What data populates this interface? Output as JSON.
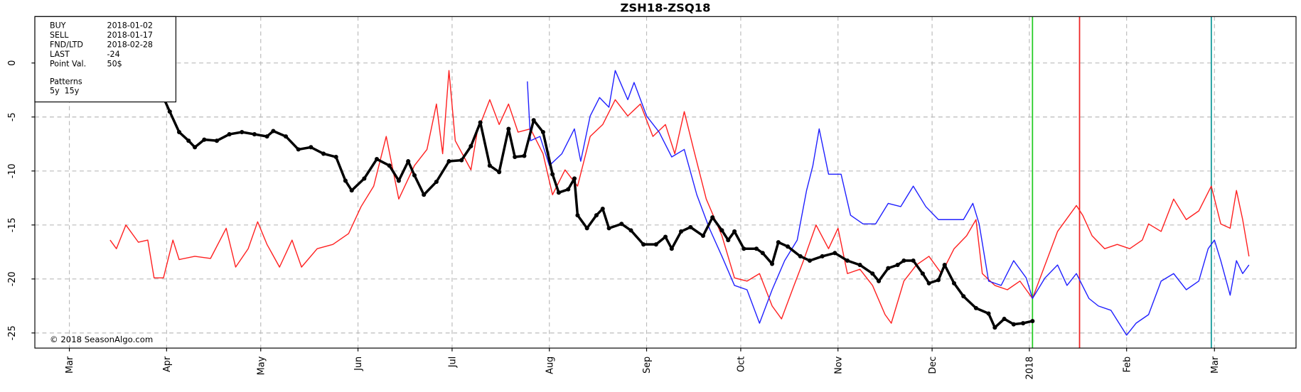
{
  "chart_data": {
    "type": "line",
    "title": "ZSH18-ZSQ18",
    "xlim": [
      -11,
      391
    ],
    "xticks": [
      {
        "value": 0,
        "label": "Mar"
      },
      {
        "value": 31,
        "label": "Apr"
      },
      {
        "value": 61,
        "label": "May"
      },
      {
        "value": 92,
        "label": "Jun"
      },
      {
        "value": 122,
        "label": "Jul"
      },
      {
        "value": 153,
        "label": "Aug"
      },
      {
        "value": 184,
        "label": "Sep"
      },
      {
        "value": 214,
        "label": "Oct"
      },
      {
        "value": 245,
        "label": "Nov"
      },
      {
        "value": 275,
        "label": "Dec"
      },
      {
        "value": 306,
        "label": "2018"
      },
      {
        "value": 337,
        "label": "Feb"
      },
      {
        "value": 365,
        "label": "Mar"
      }
    ],
    "ylim": [
      -26.4,
      4.3
    ],
    "yticks": [
      0,
      -5,
      -10,
      -15,
      -20,
      -25
    ],
    "grid": true,
    "markers": [
      {
        "label": "BUY",
        "date": "2018-01-02",
        "x": 307,
        "color": "#22cc22"
      },
      {
        "label": "SELL",
        "date": "2018-01-17",
        "x": 322,
        "color": "#ee2222"
      },
      {
        "label": "FND/LTD",
        "date": "2018-02-28",
        "x": 364,
        "color": "#119999"
      }
    ],
    "info": [
      {
        "label": "LAST",
        "value": -24
      },
      {
        "label": "Point Val.",
        "value": "50$"
      }
    ],
    "patterns_title": "Patterns",
    "copyright": "© 2018 SeasonAlgo.com",
    "series": [
      {
        "name": "5y",
        "color": "#ff2020",
        "width": 1.2,
        "dots": false,
        "x": [
          13,
          15,
          18,
          22,
          25,
          27,
          30,
          33,
          35,
          40,
          45,
          50,
          53,
          57,
          60,
          63,
          67,
          71,
          74,
          79,
          84,
          89,
          93,
          97,
          101,
          105,
          110,
          114,
          117,
          119,
          121,
          123,
          128,
          130,
          134,
          137,
          140,
          143,
          147,
          151,
          154,
          158,
          162,
          166,
          170,
          174,
          178,
          182,
          186,
          190,
          193,
          196,
          199,
          203,
          208,
          212,
          216,
          220,
          224,
          227,
          231,
          234,
          238,
          242,
          245,
          248,
          252,
          256,
          260,
          262,
          266,
          270,
          274,
          278,
          282,
          286,
          289,
          291,
          295,
          299,
          303,
          307,
          311,
          315,
          321,
          323,
          326,
          330,
          334,
          338,
          342,
          344,
          348,
          352,
          356,
          360,
          364,
          367,
          370,
          372,
          374,
          376
        ],
        "values": [
          -16.4,
          -17.2,
          -15.0,
          -16.6,
          -16.4,
          -19.9,
          -19.9,
          -16.4,
          -18.2,
          -17.9,
          -18.1,
          -15.3,
          -18.9,
          -17.2,
          -14.7,
          -16.8,
          -18.9,
          -16.4,
          -18.9,
          -17.2,
          -16.8,
          -15.8,
          -13.3,
          -11.4,
          -6.8,
          -12.6,
          -9.5,
          -8.0,
          -3.8,
          -8.4,
          -0.7,
          -7.2,
          -9.9,
          -6.4,
          -3.4,
          -5.7,
          -3.8,
          -6.4,
          -6.1,
          -8.4,
          -12.2,
          -9.9,
          -11.4,
          -6.8,
          -5.7,
          -3.4,
          -4.9,
          -3.8,
          -6.8,
          -5.7,
          -8.4,
          -4.5,
          -8.0,
          -12.6,
          -16.0,
          -19.9,
          -20.2,
          -19.5,
          -22.5,
          -23.7,
          -20.6,
          -18.3,
          -15.0,
          -17.2,
          -15.3,
          -19.5,
          -19.1,
          -20.6,
          -23.3,
          -24.1,
          -20.2,
          -18.7,
          -17.9,
          -19.5,
          -17.2,
          -16.0,
          -14.5,
          -19.5,
          -20.6,
          -21.0,
          -20.2,
          -21.8,
          -18.7,
          -15.6,
          -13.2,
          -14.1,
          -16.0,
          -17.2,
          -16.8,
          -17.2,
          -16.4,
          -14.9,
          -15.6,
          -12.6,
          -14.5,
          -13.7,
          -11.4,
          -14.9,
          -15.3,
          -11.8,
          -14.5,
          -17.9
        ]
      },
      {
        "name": "15y",
        "color": "#2020ff",
        "width": 1.2,
        "dots": false,
        "x": [
          146,
          147,
          150,
          153,
          157,
          161,
          163,
          166,
          169,
          172,
          174,
          178,
          180,
          184,
          188,
          192,
          196,
          200,
          204,
          208,
          212,
          216,
          220,
          224,
          228,
          232,
          235,
          237,
          239,
          242,
          246,
          249,
          253,
          257,
          261,
          265,
          269,
          273,
          277,
          281,
          285,
          288,
          290,
          293,
          297,
          301,
          305,
          307,
          311,
          315,
          318,
          321,
          325,
          328,
          332,
          337,
          340,
          344,
          348,
          352,
          356,
          360,
          363,
          365,
          367,
          370,
          372,
          374,
          376
        ],
        "values": [
          -1.7,
          -7.2,
          -6.8,
          -9.5,
          -8.4,
          -6.1,
          -9.1,
          -4.9,
          -3.2,
          -4.1,
          -0.7,
          -3.4,
          -1.8,
          -4.9,
          -6.4,
          -8.7,
          -8.0,
          -12.2,
          -15.3,
          -17.9,
          -20.6,
          -21.0,
          -24.1,
          -21.0,
          -18.3,
          -16.4,
          -11.8,
          -9.5,
          -6.1,
          -10.3,
          -10.3,
          -14.1,
          -14.9,
          -14.9,
          -13.0,
          -13.3,
          -11.4,
          -13.3,
          -14.5,
          -14.5,
          -14.5,
          -13.0,
          -14.9,
          -20.2,
          -20.6,
          -18.3,
          -19.9,
          -21.8,
          -19.9,
          -18.7,
          -20.6,
          -19.5,
          -21.8,
          -22.5,
          -22.9,
          -25.2,
          -24.1,
          -23.3,
          -20.2,
          -19.5,
          -21.0,
          -20.2,
          -17.2,
          -16.4,
          -18.3,
          -21.5,
          -18.3,
          -19.5,
          -18.7
        ]
      },
      {
        "color": "#000000",
        "width": 3,
        "dots": true,
        "x": [
          30,
          32,
          35,
          38,
          40,
          43,
          47,
          51,
          55,
          59,
          63,
          65,
          69,
          73,
          77,
          81,
          85,
          88,
          90,
          94,
          98,
          102,
          105,
          108,
          110,
          113,
          117,
          121,
          125,
          128,
          131,
          134,
          137,
          140,
          142,
          145,
          148,
          151,
          154,
          156,
          159,
          161,
          162,
          165,
          168,
          170,
          172,
          176,
          179,
          183,
          187,
          190,
          192,
          195,
          198,
          202,
          205,
          208,
          210,
          212,
          215,
          219,
          221,
          224,
          226,
          229,
          233,
          236,
          240,
          244,
          248,
          252,
          256,
          258,
          261,
          264,
          266,
          269,
          272,
          274,
          277,
          279,
          282,
          285,
          289,
          293,
          295,
          298,
          301,
          304,
          307
        ],
        "values": [
          -3.2,
          -4.5,
          -6.4,
          -7.2,
          -7.8,
          -7.1,
          -7.2,
          -6.6,
          -6.4,
          -6.6,
          -6.8,
          -6.3,
          -6.8,
          -8.0,
          -7.8,
          -8.4,
          -8.7,
          -10.9,
          -11.8,
          -10.7,
          -8.9,
          -9.5,
          -10.9,
          -9.1,
          -10.4,
          -12.2,
          -11.0,
          -9.1,
          -9.0,
          -7.7,
          -5.5,
          -9.5,
          -10.1,
          -6.1,
          -8.7,
          -8.6,
          -5.3,
          -6.4,
          -10.3,
          -12.0,
          -11.7,
          -10.7,
          -14.1,
          -15.3,
          -14.1,
          -13.5,
          -15.3,
          -14.9,
          -15.5,
          -16.8,
          -16.8,
          -16.1,
          -17.2,
          -15.6,
          -15.2,
          -16.0,
          -14.3,
          -15.5,
          -16.4,
          -15.6,
          -17.2,
          -17.2,
          -17.6,
          -18.6,
          -16.6,
          -17.0,
          -17.9,
          -18.3,
          -17.9,
          -17.6,
          -18.3,
          -18.7,
          -19.5,
          -20.2,
          -19.0,
          -18.7,
          -18.3,
          -18.3,
          -19.5,
          -20.4,
          -20.1,
          -18.7,
          -20.4,
          -21.6,
          -22.7,
          -23.2,
          -24.5,
          -23.7,
          -24.2,
          -24.1,
          -23.9
        ]
      }
    ]
  }
}
